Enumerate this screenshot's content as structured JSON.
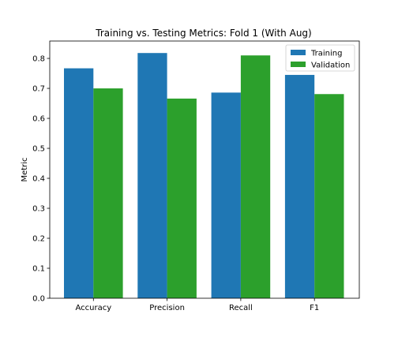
{
  "chart_data": {
    "type": "bar",
    "title": "Training vs. Testing Metrics: Fold 1 (With Aug)",
    "xlabel": "",
    "ylabel": "Metric",
    "categories": [
      "Accuracy",
      "Precision",
      "Recall",
      "F1"
    ],
    "series": [
      {
        "name": "Training",
        "values": [
          0.767,
          0.818,
          0.686,
          0.745
        ],
        "color": "#1f77b4"
      },
      {
        "name": "Validation",
        "values": [
          0.7,
          0.666,
          0.81,
          0.681
        ],
        "color": "#2ca02c"
      }
    ],
    "ylim": [
      0,
      0.858
    ],
    "yticks": [
      0.0,
      0.1,
      0.2,
      0.3,
      0.4,
      0.5,
      0.6,
      0.7,
      0.8
    ],
    "ytick_labels": [
      "0.0",
      "0.1",
      "0.2",
      "0.3",
      "0.4",
      "0.5",
      "0.6",
      "0.7",
      "0.8"
    ],
    "grid": false,
    "legend_position": "top-right"
  }
}
